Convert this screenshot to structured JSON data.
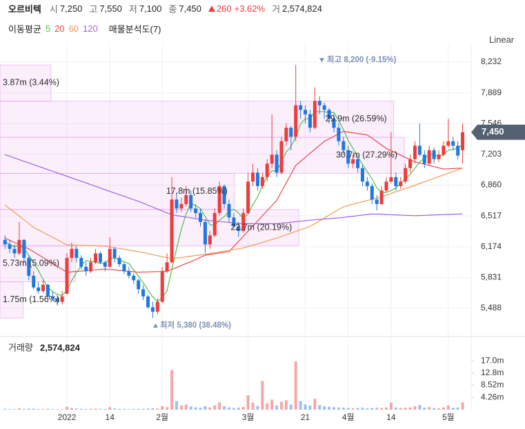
{
  "header": {
    "name": "오르비텍",
    "stats": [
      {
        "label": "시",
        "value": "7,250"
      },
      {
        "label": "고",
        "value": "7,550"
      },
      {
        "label": "저",
        "value": "7,100"
      },
      {
        "label": "종",
        "value": "7,450"
      }
    ],
    "change": "260",
    "change_pct": "+3.62%",
    "volume_label": "거",
    "volume": "2,574,824",
    "ma_title": "이동평균",
    "profile_title": "매물분석도(7)",
    "scale_label": "Linear"
  },
  "chart_data": {
    "type": "candlestick",
    "categories": [
      null,
      null,
      null,
      null,
      null,
      null,
      null,
      null,
      null,
      null,
      null,
      null,
      null,
      "2022",
      null,
      null,
      null,
      null,
      null,
      null,
      null,
      null,
      "14",
      null,
      null,
      null,
      null,
      null,
      null,
      null,
      null,
      null,
      null,
      "2월",
      null,
      null,
      null,
      null,
      null,
      null,
      null,
      null,
      null,
      null,
      null,
      null,
      null,
      null,
      null,
      null,
      null,
      "3월",
      null,
      null,
      null,
      null,
      null,
      null,
      null,
      null,
      null,
      null,
      null,
      "21",
      null,
      null,
      null,
      null,
      null,
      null,
      null,
      null,
      "4월",
      null,
      null,
      null,
      null,
      null,
      null,
      null,
      null,
      "14",
      null,
      null,
      null,
      null,
      null,
      null,
      null,
      null,
      null,
      null,
      null,
      "5월",
      null,
      null,
      null
    ],
    "ohlc": [
      [
        6250,
        6300,
        6150,
        6200
      ],
      [
        6200,
        6250,
        6100,
        6150
      ],
      [
        6150,
        6200,
        6050,
        6100
      ],
      [
        6100,
        6450,
        6080,
        6250
      ],
      [
        6250,
        6260,
        6000,
        6050
      ],
      [
        6050,
        6080,
        5800,
        5850
      ],
      [
        5850,
        5900,
        5700,
        5720
      ],
      [
        5720,
        5780,
        5650,
        5680
      ],
      [
        5680,
        5800,
        5660,
        5750
      ],
      [
        5750,
        5760,
        5600,
        5620
      ],
      [
        5620,
        5680,
        5570,
        5600
      ],
      [
        5600,
        5620,
        5520,
        5560
      ],
      [
        5560,
        5680,
        5530,
        5620
      ],
      [
        5650,
        6100,
        5640,
        6050
      ],
      [
        6050,
        6220,
        6000,
        6150
      ],
      [
        6150,
        6180,
        6000,
        6050
      ],
      [
        6050,
        6080,
        5920,
        5950
      ],
      [
        5950,
        6000,
        5850,
        5900
      ],
      [
        5900,
        6050,
        5880,
        6000
      ],
      [
        6000,
        6150,
        5980,
        6100
      ],
      [
        6100,
        6120,
        5980,
        6000
      ],
      [
        6000,
        6020,
        5900,
        5950
      ],
      [
        5950,
        6280,
        5940,
        6150
      ],
      [
        6150,
        6170,
        6000,
        6050
      ],
      [
        6050,
        6080,
        5950,
        5980
      ],
      [
        5980,
        6000,
        5870,
        5900
      ],
      [
        5900,
        5950,
        5820,
        5850
      ],
      [
        5850,
        5880,
        5760,
        5800
      ],
      [
        5800,
        5820,
        5650,
        5700
      ],
      [
        5700,
        5750,
        5580,
        5620
      ],
      [
        5620,
        5640,
        5480,
        5500
      ],
      [
        5500,
        5560,
        5380,
        5450
      ],
      [
        5450,
        5600,
        5420,
        5560
      ],
      [
        5560,
        5950,
        5550,
        5900
      ],
      [
        5900,
        6100,
        5880,
        6000
      ],
      [
        6000,
        6950,
        5990,
        6700
      ],
      [
        6700,
        6780,
        6550,
        6600
      ],
      [
        6600,
        6720,
        6560,
        6650
      ],
      [
        6650,
        6850,
        6620,
        6750
      ],
      [
        6750,
        6800,
        6560,
        6600
      ],
      [
        6600,
        6650,
        6500,
        6550
      ],
      [
        6550,
        6600,
        6400,
        6450
      ],
      [
        6450,
        6480,
        6100,
        6200
      ],
      [
        6200,
        6350,
        6150,
        6300
      ],
      [
        6300,
        6600,
        6280,
        6550
      ],
      [
        6550,
        6900,
        6520,
        6850
      ],
      [
        6850,
        6870,
        6600,
        6650
      ],
      [
        6650,
        6700,
        6450,
        6500
      ],
      [
        6500,
        6550,
        6380,
        6400
      ],
      [
        6400,
        6450,
        6280,
        6350
      ],
      [
        6350,
        6600,
        6330,
        6550
      ],
      [
        6550,
        7000,
        6540,
        6900
      ],
      [
        6900,
        7100,
        6850,
        7000
      ],
      [
        7000,
        7050,
        6800,
        6850
      ],
      [
        6850,
        7000,
        6820,
        6950
      ],
      [
        6950,
        7150,
        6900,
        7100
      ],
      [
        7100,
        7650,
        7050,
        7200
      ],
      [
        7200,
        7250,
        6950,
        7000
      ],
      [
        7000,
        7400,
        6980,
        7350
      ],
      [
        7350,
        7550,
        7300,
        7500
      ],
      [
        7500,
        7520,
        7250,
        7400
      ],
      [
        7400,
        8200,
        7350,
        7750
      ],
      [
        7750,
        7800,
        7600,
        7700
      ],
      [
        7700,
        7750,
        7550,
        7650
      ],
      [
        7650,
        7700,
        7450,
        7500
      ],
      [
        7500,
        7950,
        7480,
        7800
      ],
      [
        7800,
        7850,
        7650,
        7750
      ],
      [
        7750,
        7780,
        7600,
        7700
      ],
      [
        7700,
        7720,
        7550,
        7600
      ],
      [
        7600,
        7650,
        7450,
        7500
      ],
      [
        7500,
        7550,
        7300,
        7350
      ],
      [
        7350,
        7400,
        7200,
        7250
      ],
      [
        7250,
        7300,
        7050,
        7100
      ],
      [
        7100,
        7200,
        7050,
        7150
      ],
      [
        7150,
        7180,
        7000,
        7050
      ],
      [
        7050,
        7080,
        6850,
        6900
      ],
      [
        6900,
        6950,
        6800,
        6850
      ],
      [
        6850,
        6880,
        6650,
        6700
      ],
      [
        6700,
        6750,
        6580,
        6650
      ],
      [
        6650,
        6850,
        6640,
        6800
      ],
      [
        6800,
        6950,
        6780,
        6900
      ],
      [
        6900,
        7450,
        6880,
        6950
      ],
      [
        6950,
        7000,
        6800,
        6850
      ],
      [
        6850,
        6950,
        6820,
        6900
      ],
      [
        6900,
        7100,
        6880,
        7050
      ],
      [
        7050,
        7200,
        7000,
        7150
      ],
      [
        7150,
        7350,
        7100,
        7300
      ],
      [
        7300,
        7550,
        7180,
        7200
      ],
      [
        7200,
        7250,
        7050,
        7100
      ],
      [
        7100,
        7300,
        7080,
        7250
      ],
      [
        7250,
        7280,
        7100,
        7150
      ],
      [
        7150,
        7250,
        7120,
        7200
      ],
      [
        7200,
        7350,
        7180,
        7300
      ],
      [
        7300,
        7600,
        7280,
        7350
      ],
      [
        7350,
        7400,
        7250,
        7300
      ],
      [
        7300,
        7350,
        7150,
        7190
      ],
      [
        7250,
        7550,
        7100,
        7450
      ]
    ],
    "up_color": "#ee3b3b",
    "down_color": "#1f78e0",
    "ylim": [
      5234,
      8386
    ],
    "yticks": [
      {
        "value": 8232,
        "label": "8,232"
      },
      {
        "value": 7889,
        "label": "7,889"
      },
      {
        "value": 7546,
        "label": "7,546"
      },
      {
        "value": 7203,
        "label": "7,203"
      },
      {
        "value": 6860,
        "label": "6,860"
      },
      {
        "value": 6517,
        "label": "6,517"
      },
      {
        "value": 6174,
        "label": "6,174"
      },
      {
        "value": 5831,
        "label": "5,831"
      },
      {
        "value": 5488,
        "label": "5,488"
      }
    ],
    "grid": true,
    "series": [
      {
        "name": "5",
        "color": "#4cbf4c",
        "values": [
          6230,
          6200,
          6170,
          6190,
          6150,
          6080,
          5994,
          5910,
          5810,
          5724,
          5674,
          5642,
          5630,
          5690,
          5796,
          5886,
          5964,
          6020,
          6010,
          6000,
          5990,
          5990,
          6040,
          6050,
          6026,
          6006,
          5986,
          5916,
          5846,
          5774,
          5694,
          5614,
          5566,
          5606,
          5682,
          5922,
          6152,
          6370,
          6540,
          6660,
          6630,
          6600,
          6510,
          6420,
          6410,
          6470,
          6510,
          6570,
          6590,
          6550,
          6490,
          6540,
          6640,
          6730,
          6850,
          6960,
          7020,
          7020,
          7120,
          7230,
          7290,
          7400,
          7540,
          7600,
          7600,
          7680,
          7680,
          7680,
          7670,
          7670,
          7580,
          7480,
          7360,
          7270,
          7180,
          7090,
          7010,
          6930,
          6830,
          6780,
          6780,
          6800,
          6830,
          6880,
          6930,
          6980,
          7050,
          7120,
          7160,
          7200,
          7200,
          7180,
          7200,
          7250,
          7260,
          7268,
          7318
        ]
      },
      {
        "name": "20",
        "color": "#e8474c",
        "values": [
          6270,
          6246,
          6222,
          6198,
          6174,
          6150,
          6118,
          6085,
          6053,
          6020,
          5988,
          5955,
          5923,
          5890,
          5894,
          5899,
          5903,
          5908,
          5912,
          5916,
          5921,
          5925,
          5920,
          5915,
          5910,
          5905,
          5900,
          5895,
          5890,
          5892,
          5893,
          5895,
          5897,
          5898,
          5900,
          5922,
          5943,
          5965,
          5987,
          6008,
          6030,
          6055,
          6080,
          6088,
          6096,
          6104,
          6112,
          6120,
          6177,
          6233,
          6290,
          6347,
          6403,
          6460,
          6518,
          6575,
          6633,
          6690,
          6788,
          6885,
          6983,
          7080,
          7125,
          7170,
          7215,
          7260,
          7305,
          7350,
          7378,
          7405,
          7433,
          7460,
          7452,
          7444,
          7436,
          7428,
          7420,
          7383,
          7345,
          7308,
          7270,
          7245,
          7220,
          7195,
          7170,
          7145,
          7120,
          7107,
          7093,
          7080,
          7067,
          7053,
          7040,
          7043,
          7045,
          7048,
          7050
        ]
      },
      {
        "name": "60",
        "color": "#f39a4e",
        "values": [
          6640,
          6598,
          6557,
          6515,
          6473,
          6432,
          6390,
          6362,
          6334,
          6306,
          6279,
          6251,
          6223,
          6195,
          6193,
          6191,
          6189,
          6188,
          6186,
          6184,
          6182,
          6180,
          6171,
          6163,
          6154,
          6146,
          6137,
          6129,
          6120,
          6109,
          6097,
          6086,
          6074,
          6063,
          6051,
          6040,
          6047,
          6054,
          6061,
          6069,
          6076,
          6083,
          6090,
          6099,
          6108,
          6116,
          6125,
          6134,
          6143,
          6151,
          6160,
          6176,
          6191,
          6207,
          6223,
          6239,
          6254,
          6270,
          6289,
          6307,
          6326,
          6344,
          6363,
          6381,
          6400,
          6431,
          6463,
          6494,
          6526,
          6557,
          6589,
          6620,
          6634,
          6648,
          6661,
          6675,
          6689,
          6703,
          6716,
          6730,
          6749,
          6767,
          6786,
          6804,
          6823,
          6841,
          6860,
          6879,
          6898,
          6917,
          6936,
          6955,
          6974,
          6993,
          7012,
          7031,
          7050
        ]
      },
      {
        "name": "120",
        "color": "#9d63e0",
        "values": [
          7200,
          7182,
          7163,
          7145,
          7126,
          7108,
          7089,
          7071,
          7052,
          7034,
          7015,
          6997,
          6978,
          6960,
          6941,
          6922,
          6904,
          6885,
          6866,
          6848,
          6829,
          6810,
          6791,
          6773,
          6754,
          6736,
          6717,
          6699,
          6680,
          6659,
          6637,
          6616,
          6594,
          6573,
          6551,
          6530,
          6521,
          6513,
          6504,
          6496,
          6487,
          6479,
          6470,
          6465,
          6460,
          6455,
          6450,
          6445,
          6440,
          6435,
          6430,
          6430,
          6430,
          6430,
          6430,
          6430,
          6430,
          6430,
          6436,
          6441,
          6447,
          6453,
          6459,
          6464,
          6470,
          6474,
          6479,
          6483,
          6487,
          6491,
          6496,
          6500,
          6507,
          6513,
          6520,
          6527,
          6533,
          6540,
          6538,
          6536,
          6533,
          6531,
          6529,
          6527,
          6524,
          6522,
          6520,
          6522,
          6524,
          6526,
          6528,
          6530,
          6532,
          6534,
          6536,
          6538,
          6540
        ]
      }
    ],
    "current_price": {
      "value": 7450,
      "label": "7,450"
    },
    "high": 8200,
    "high_label": "최고 8,200 (-9.15%)",
    "low": 5380,
    "low_label": "최저 5,380 (38.48%)",
    "profile": {
      "color": "#e9a8f0",
      "bins": [
        5380,
        5783,
        6186,
        6589,
        6991,
        7394,
        7797,
        8200
      ],
      "values": [
        1.75,
        5.73,
        22.7,
        17.8,
        30.7,
        29.9,
        3.87
      ],
      "value_labels": [
        "1.75m (1.56%)",
        "5.73m (5.09%)",
        "22.7m (20.19%)",
        "17.8m (15.85%)",
        "30.7m (27.29%)",
        "29.9m (26.59%)",
        "3.87m (3.44%)"
      ]
    },
    "volume": {
      "title": "거래량",
      "last_label": "2,574,824",
      "values": [
        0.3,
        0.25,
        0.2,
        0.5,
        0.3,
        0.4,
        0.35,
        0.2,
        0.25,
        0.3,
        0.2,
        0.15,
        0.2,
        1.0,
        0.6,
        0.4,
        0.3,
        0.25,
        0.3,
        0.35,
        0.3,
        0.25,
        0.9,
        0.4,
        0.3,
        0.25,
        0.2,
        0.25,
        0.3,
        0.3,
        0.4,
        0.5,
        0.4,
        1.2,
        0.9,
        13.8,
        3.0,
        1.5,
        1.8,
        1.1,
        0.8,
        0.7,
        1.2,
        0.8,
        1.5,
        2.5,
        1.2,
        0.8,
        0.6,
        0.7,
        1.0,
        5.0,
        2.5,
        1.3,
        10.0,
        2.2,
        3.5,
        1.5,
        2.8,
        3.3,
        1.8,
        16.8,
        3.0,
        1.8,
        1.4,
        3.8,
        1.6,
        1.2,
        1.0,
        0.9,
        0.8,
        0.7,
        0.6,
        0.5,
        0.6,
        0.7,
        0.5,
        0.6,
        0.7,
        0.6,
        0.8,
        2.4,
        0.8,
        0.6,
        0.7,
        0.8,
        1.2,
        1.6,
        0.7,
        0.9,
        0.6,
        0.5,
        0.8,
        1.5,
        0.7,
        0.8,
        2.574824
      ],
      "ylim": [
        0,
        25
      ],
      "yticks": [
        {
          "value": 17.0,
          "label": "17.0m"
        },
        {
          "value": 12.8,
          "label": "12.8m"
        },
        {
          "value": 8.52,
          "label": "8.52m"
        },
        {
          "value": 4.26,
          "label": "4.26m"
        }
      ]
    }
  }
}
